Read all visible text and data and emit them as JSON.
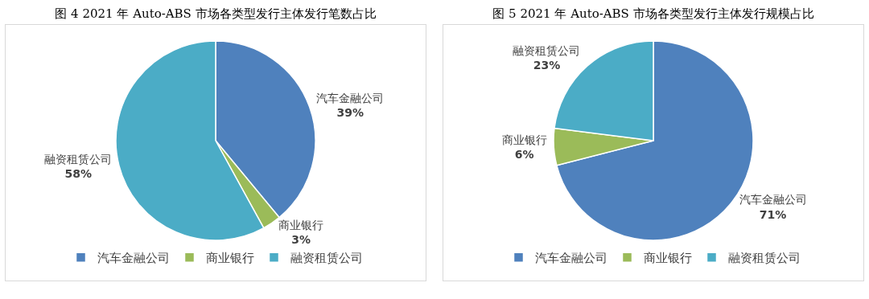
{
  "chart_data": [
    {
      "type": "pie",
      "title": "图 4   2021 年 Auto-ABS 市场各类型发行主体发行笔数占比",
      "categories": [
        "汽车金融公司",
        "商业银行",
        "融资租赁公司"
      ],
      "values": [
        39,
        3,
        58
      ],
      "colors": [
        "#4f81bd",
        "#9bbb59",
        "#4bacc6"
      ],
      "value_labels": [
        "39%",
        "3%",
        "58%"
      ],
      "legend": "bottom"
    },
    {
      "type": "pie",
      "title": "图 5   2021 年 Auto-ABS 市场各类型发行主体发行规模占比",
      "categories": [
        "汽车金融公司",
        "商业银行",
        "融资租赁公司"
      ],
      "values": [
        71,
        6,
        23
      ],
      "colors": [
        "#4f81bd",
        "#9bbb59",
        "#4bacc6"
      ],
      "value_labels": [
        "71%",
        "6%",
        "23%"
      ],
      "legend": "bottom"
    }
  ]
}
